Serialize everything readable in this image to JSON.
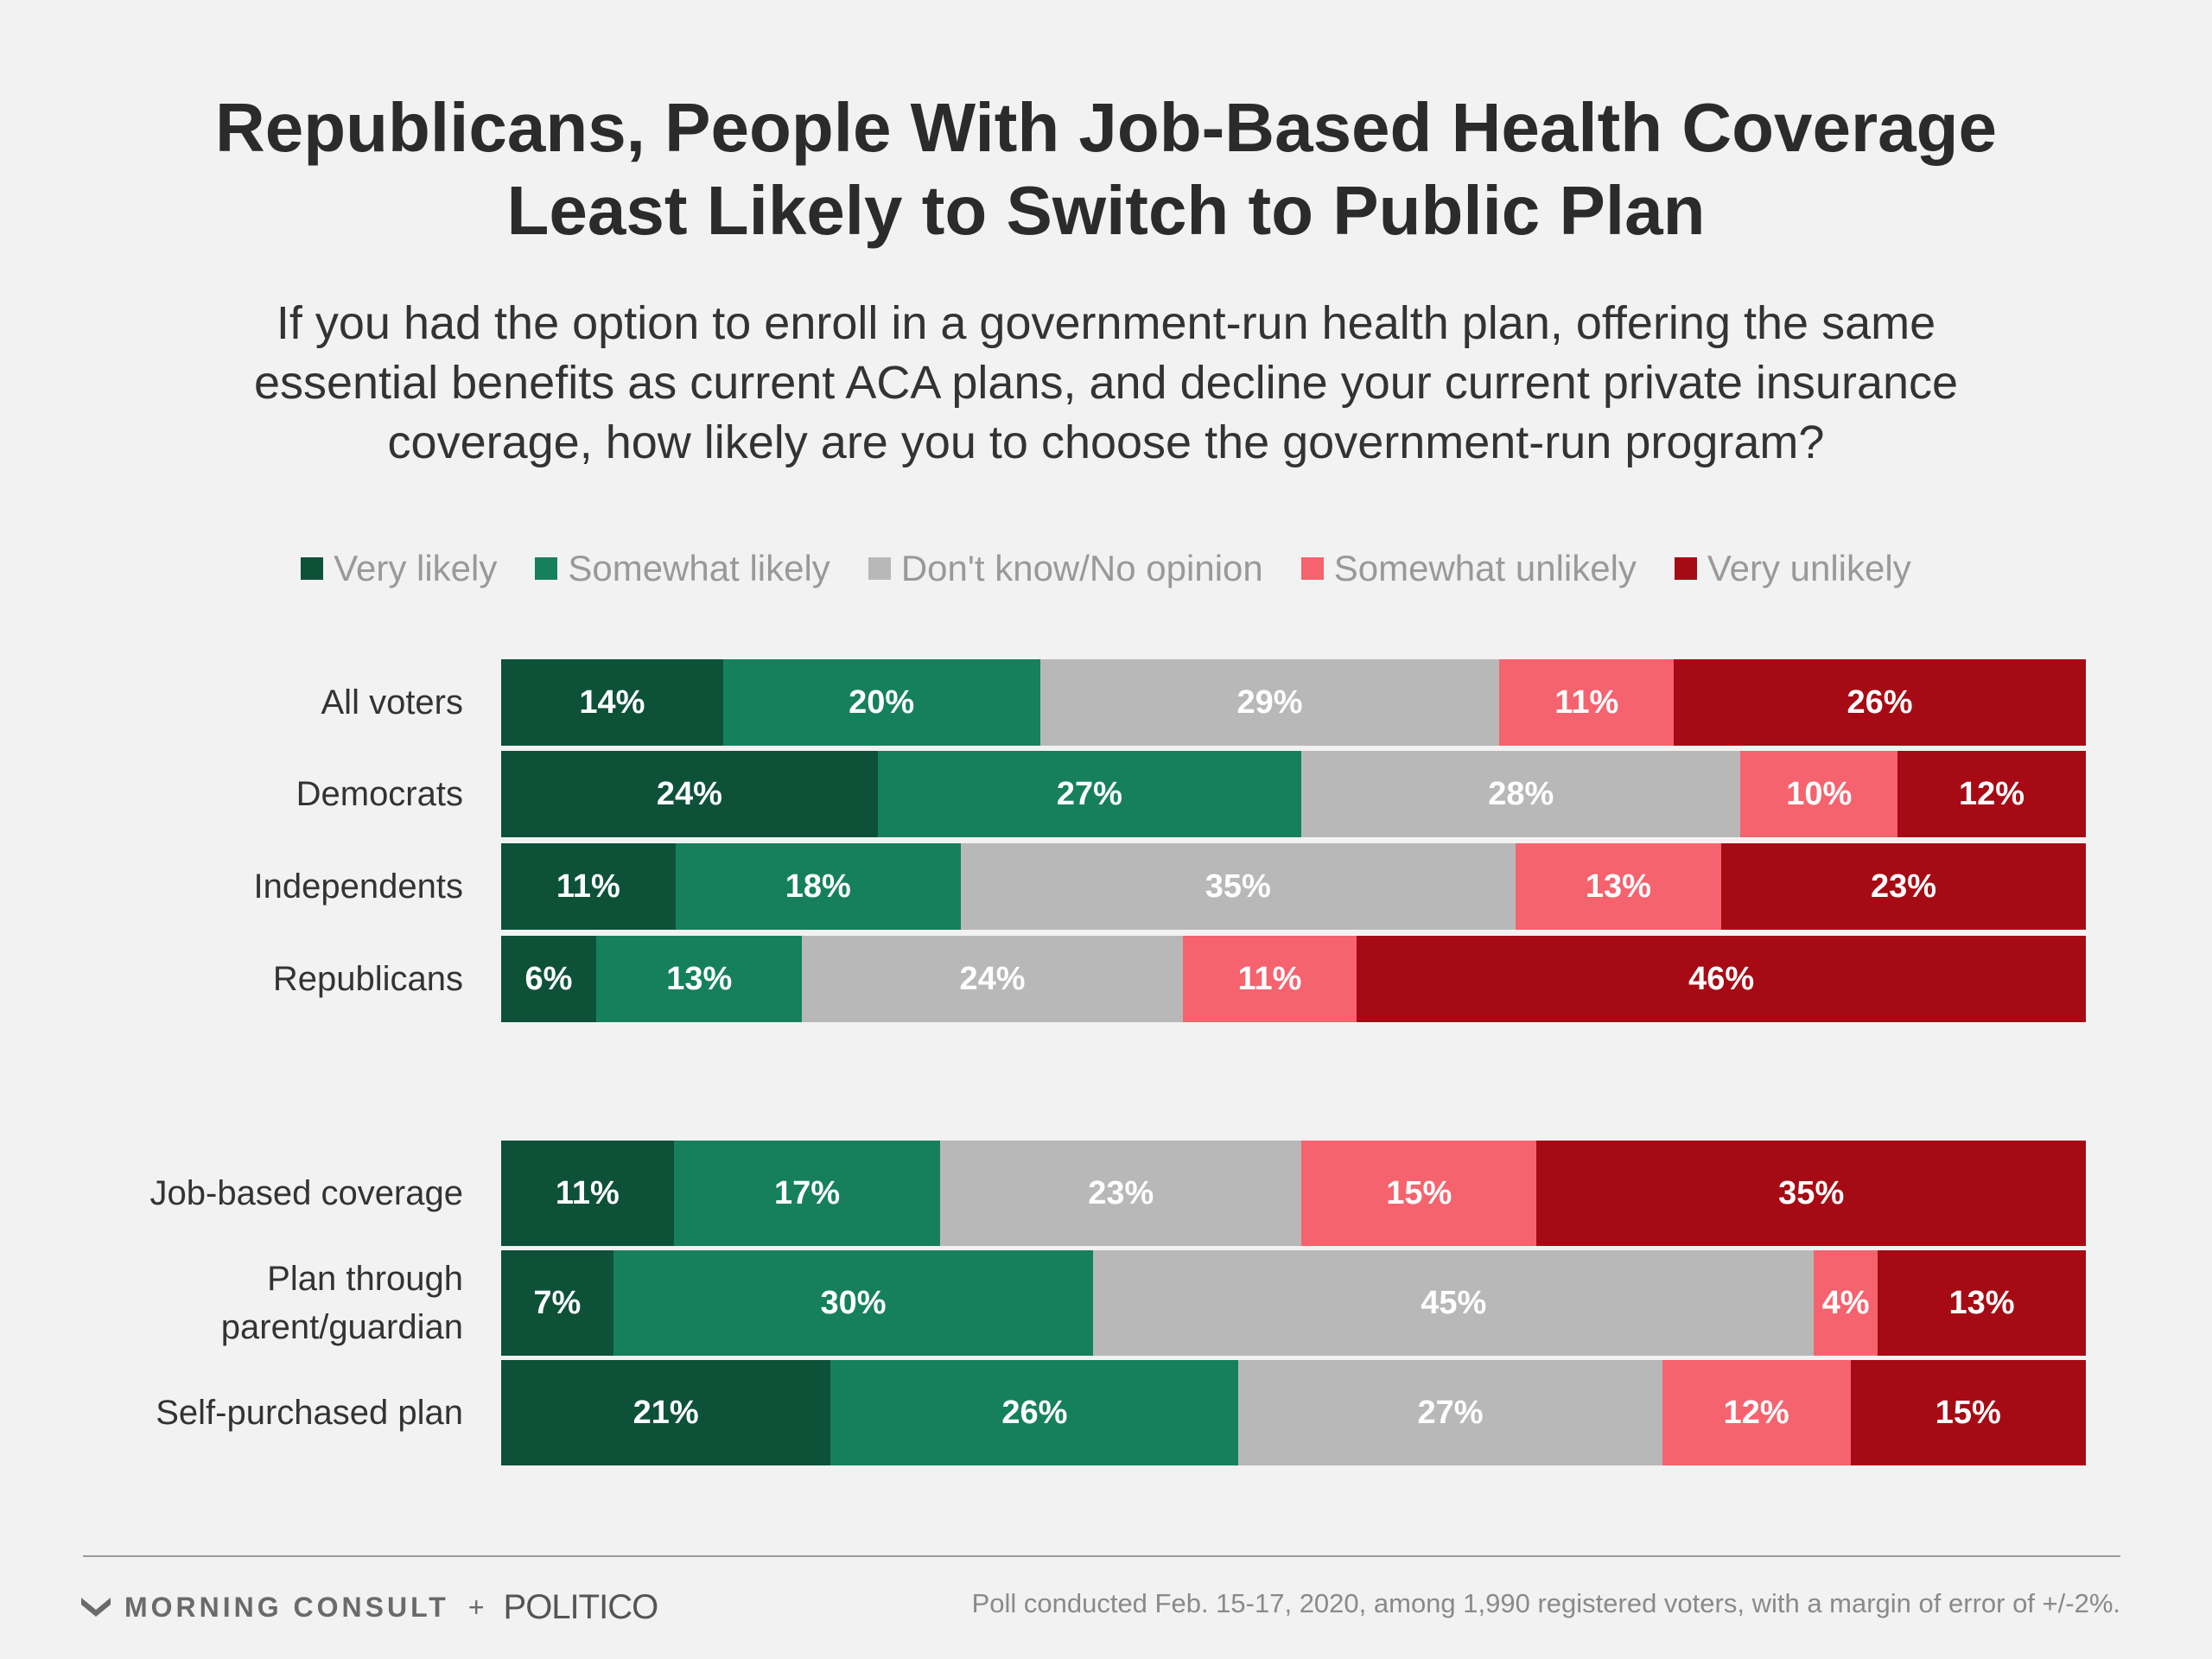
{
  "title": [
    "Republicans, People With Job-Based Health Coverage",
    "Least Likely to Switch to Public Plan"
  ],
  "subtitle": [
    "If you had the option to enroll in a government-run health plan, offering the same",
    "essential benefits as current ACA plans, and decline your current private insurance",
    "coverage, how likely are you to choose the government-run program?"
  ],
  "footer": {
    "logo_left": "MORNING CONSULT",
    "plus": "+",
    "logo_right": "POLITICO",
    "note": "Poll conducted Feb. 15-17, 2020, among 1,990 registered voters, with a margin of error of +/-2%."
  },
  "chart_data": {
    "type": "bar",
    "orientation": "horizontal",
    "stacked": true,
    "normalized": true,
    "legend_position": "top",
    "series": [
      {
        "name": "Very likely",
        "color": "#0d5139"
      },
      {
        "name": "Somewhat likely",
        "color": "#16805d"
      },
      {
        "name": "Don't know/No opinion",
        "color": "#b8b8b8"
      },
      {
        "name": "Somewhat unlikely",
        "color": "#f5636f"
      },
      {
        "name": "Very unlikely",
        "color": "#a60a14"
      }
    ],
    "groups": [
      {
        "rows": [
          {
            "label": [
              "All voters"
            ],
            "values": [
              14,
              20,
              29,
              11,
              26
            ]
          },
          {
            "label": [
              "Democrats"
            ],
            "values": [
              24,
              27,
              28,
              10,
              12
            ]
          },
          {
            "label": [
              "Independents"
            ],
            "values": [
              11,
              18,
              35,
              13,
              23
            ]
          },
          {
            "label": [
              "Republicans"
            ],
            "values": [
              6,
              13,
              24,
              11,
              46
            ]
          }
        ]
      },
      {
        "rows": [
          {
            "label": [
              "Job-based coverage"
            ],
            "values": [
              11,
              17,
              23,
              15,
              35
            ]
          },
          {
            "label": [
              "Plan through",
              "parent/guardian"
            ],
            "values": [
              7,
              30,
              45,
              4,
              13
            ]
          },
          {
            "label": [
              "Self-purchased plan"
            ],
            "values": [
              21,
              26,
              27,
              12,
              15
            ]
          }
        ]
      }
    ]
  }
}
